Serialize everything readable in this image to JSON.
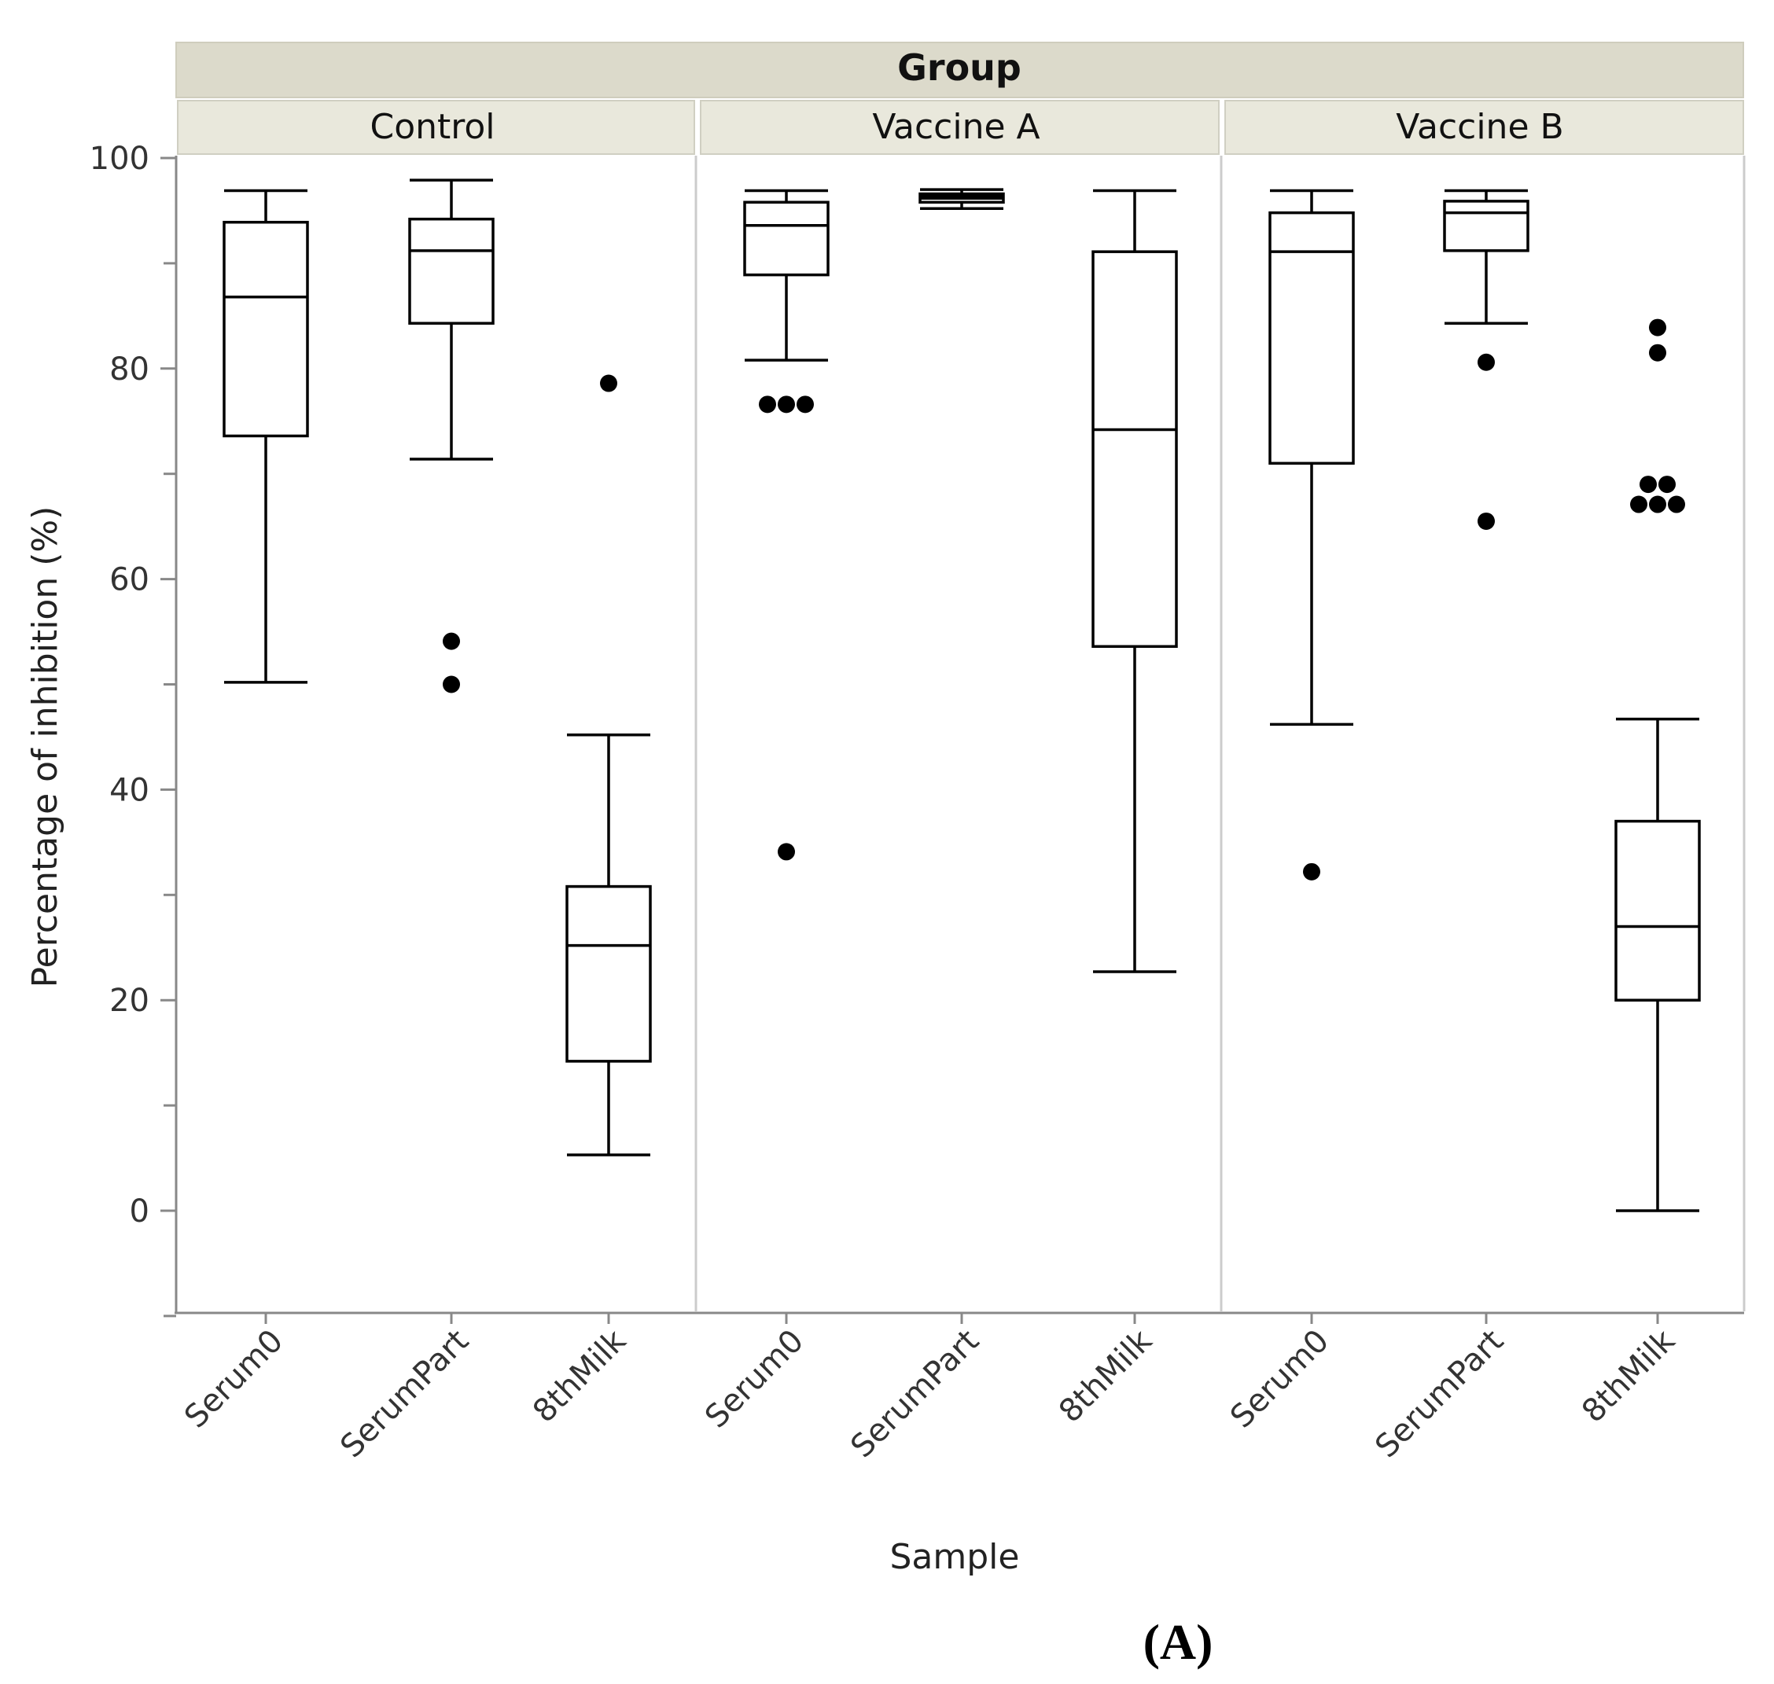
{
  "chart_data": {
    "type": "boxplot",
    "group_title": "Group",
    "xlabel": "Sample",
    "ylabel": "Percentage of inhibition (%)",
    "ylim": [
      -10,
      110
    ],
    "yticks": [
      0,
      20,
      40,
      60,
      80,
      100
    ],
    "grid": false,
    "panel_label": "(A)",
    "groups": [
      {
        "name": "Control",
        "samples": [
          {
            "name": "Serum0",
            "whisker_low": 50.2,
            "q1": 73.6,
            "median": 86.8,
            "q3": 93.9,
            "whisker_high": 96.9,
            "outliers": []
          },
          {
            "name": "SerumPart",
            "whisker_low": 71.4,
            "q1": 84.3,
            "median": 91.2,
            "q3": 94.2,
            "whisker_high": 97.9,
            "outliers": [
              54.1,
              50.0
            ]
          },
          {
            "name": "8thMilk",
            "whisker_low": 5.3,
            "q1": 14.2,
            "median": 25.2,
            "q3": 30.8,
            "whisker_high": 45.2,
            "outliers": [
              78.6
            ]
          }
        ]
      },
      {
        "name": "Vaccine A",
        "samples": [
          {
            "name": "Serum0",
            "whisker_low": 80.8,
            "q1": 88.9,
            "median": 93.6,
            "q3": 95.8,
            "whisker_high": 96.9,
            "outliers": [
              76.6,
              76.6,
              76.6,
              34.1
            ]
          },
          {
            "name": "SerumPart",
            "whisker_low": 95.2,
            "q1": 95.8,
            "median": 96.3,
            "q3": 96.6,
            "whisker_high": 97.0,
            "outliers": []
          },
          {
            "name": "8thMilk",
            "whisker_low": 22.7,
            "q1": 53.6,
            "median": 74.2,
            "q3": 91.1,
            "whisker_high": 96.9,
            "outliers": []
          }
        ]
      },
      {
        "name": "Vaccine B",
        "samples": [
          {
            "name": "Serum0",
            "whisker_low": 46.2,
            "q1": 71.0,
            "median": 91.1,
            "q3": 94.8,
            "whisker_high": 96.9,
            "outliers": [
              32.2
            ]
          },
          {
            "name": "SerumPart",
            "whisker_low": 84.3,
            "q1": 91.2,
            "median": 94.8,
            "q3": 95.9,
            "whisker_high": 96.9,
            "outliers": [
              80.6,
              65.5
            ]
          },
          {
            "name": "8thMilk",
            "whisker_low": 0.0,
            "q1": 20.0,
            "median": 27.0,
            "q3": 37.0,
            "whisker_high": 46.7,
            "outliers": [
              83.9,
              81.5,
              69.0,
              69.0,
              67.1,
              67.1,
              67.1
            ]
          }
        ]
      }
    ]
  }
}
